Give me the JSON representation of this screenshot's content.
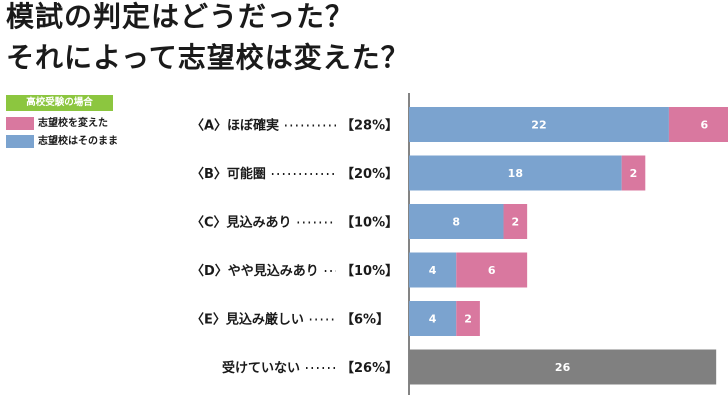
{
  "title_lines": [
    "模試の判定はどうだった？",
    "それによって志望校は変えた？"
  ],
  "legend": {
    "header": "高校受験の場合",
    "items": [
      {
        "label": "志望校を変えた",
        "color": "#d9789f"
      },
      {
        "label": "志望校はそのまま",
        "color": "#7ba3cf"
      }
    ]
  },
  "chart_data": {
    "type": "bar",
    "orientation": "horizontal",
    "stacked": true,
    "categories": [
      "〈A〉ほぼ確実 ……… 【28%】",
      "〈B〉可能圏 ………… 【20%】",
      "〈C〉見込みあり …… 【10%】",
      "〈D〉やや見込みあり… 【10%】",
      "〈E〉見込み厳しい …… 【6%】",
      "受けていない … 【26%】"
    ],
    "category_names": [
      "〈A〉ほぼ確実",
      "〈B〉可能圏",
      "〈C〉見込みあり",
      "〈D〉やや見込みあり",
      "〈E〉見込み厳しい",
      "受けていない"
    ],
    "percent_labels": [
      "【28%】",
      "【20%】",
      "【10%】",
      "【10%】",
      "【6%】",
      "【26%】"
    ],
    "series": [
      {
        "name": "志望校はそのまま",
        "color": "#7ba3cf",
        "values": [
          22,
          18,
          8,
          4,
          4,
          0
        ]
      },
      {
        "name": "志望校を変えた",
        "color": "#d9789f",
        "values": [
          6,
          2,
          2,
          6,
          2,
          0
        ]
      },
      {
        "color": "#808080",
        "values": [
          0,
          0,
          0,
          0,
          0,
          26
        ]
      }
    ],
    "xlim": [
      0,
      27
    ],
    "grid": false
  }
}
